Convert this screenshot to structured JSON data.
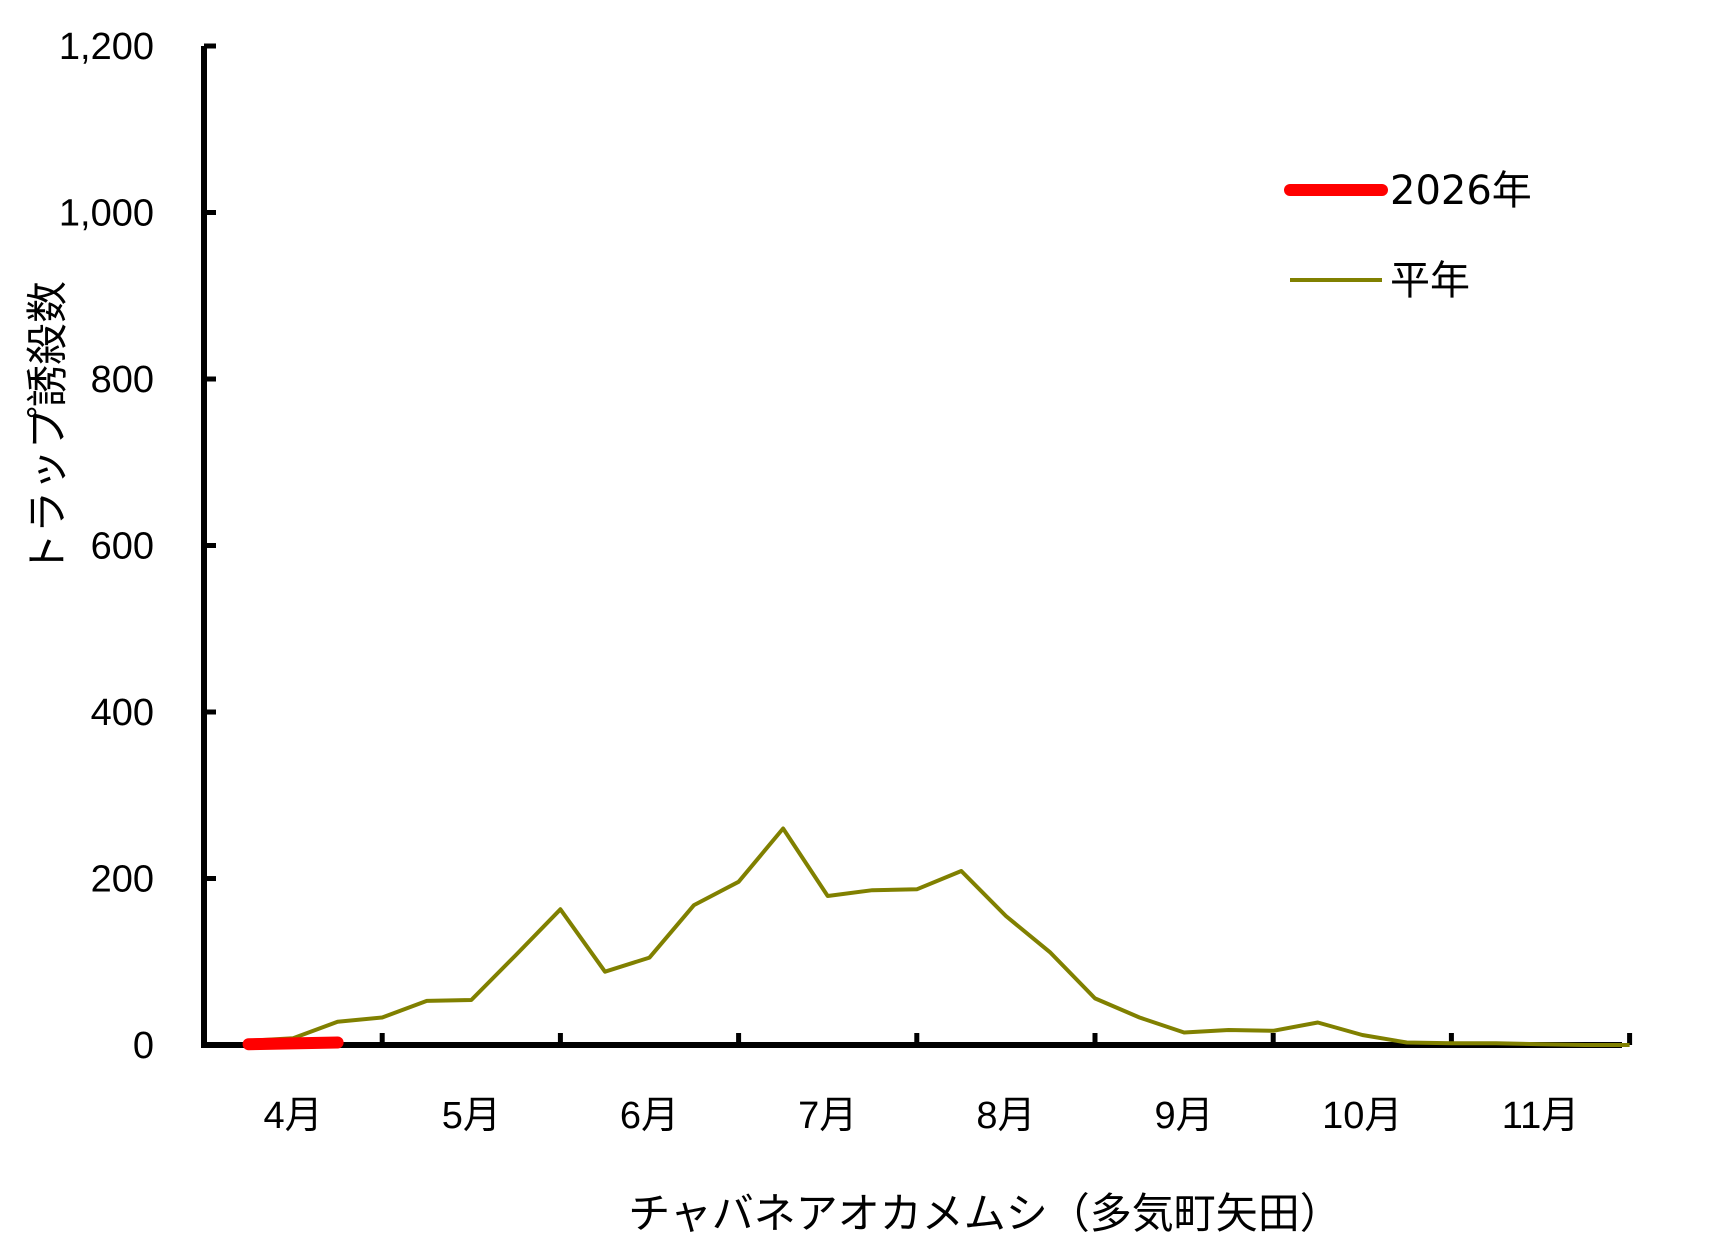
{
  "chart_data": {
    "type": "line",
    "xlabel": "チャバネアオカメムシ（多気町矢田）",
    "ylabel": "トラップ誘殺数",
    "ylim": [
      0,
      1200
    ],
    "yticks": [
      "0",
      "200",
      "400",
      "600",
      "800",
      "1,000",
      "1,200"
    ],
    "yticks_values": [
      0,
      200,
      400,
      600,
      800,
      1000,
      1200
    ],
    "months": [
      "4月",
      "5月",
      "6月",
      "7月",
      "8月",
      "9月",
      "10月",
      "11月"
    ],
    "x_unit": "half-month period index (0 = early April)",
    "legend_position": "top-right",
    "series": [
      {
        "name": "2026年",
        "color": "#ff0000",
        "width": "thick",
        "x": [
          0,
          1
        ],
        "values": [
          1,
          3
        ]
      },
      {
        "name": "平年",
        "color": "#808000",
        "width": "thin",
        "x": [
          0,
          0.5,
          1,
          1.5,
          2,
          2.5,
          3,
          3.5,
          4,
          4.5,
          5,
          5.5,
          6,
          6.5,
          7,
          7.5,
          8,
          8.5,
          9,
          9.5,
          10,
          10.5,
          11,
          11.5,
          12,
          12.5,
          13,
          13.5,
          14,
          14.5,
          15,
          15.5
        ],
        "values": [
          5,
          8,
          28,
          33,
          53,
          54,
          108,
          163,
          88,
          105,
          168,
          196,
          260,
          179,
          186,
          187,
          209,
          155,
          111,
          56,
          33,
          15,
          18,
          17,
          27,
          12,
          3,
          2,
          2,
          1,
          0,
          0
        ]
      }
    ]
  }
}
